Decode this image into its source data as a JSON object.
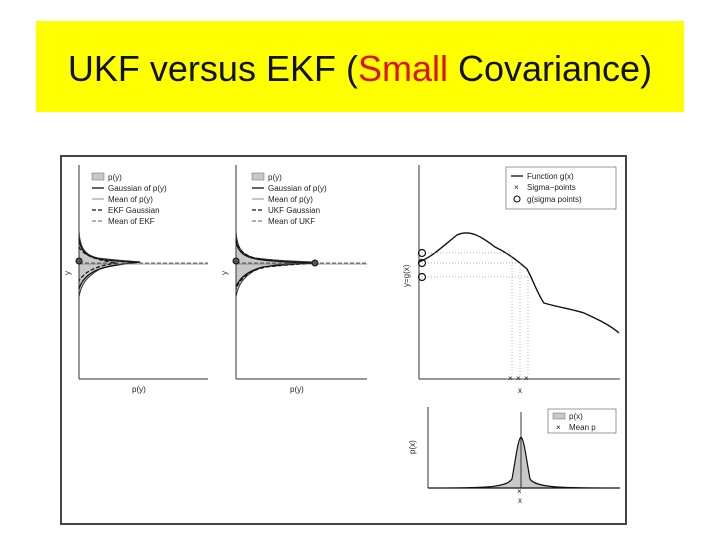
{
  "slide": {
    "title_prefix": "UKF versus EKF (",
    "title_highlight": "Small",
    "title_suffix": " Covariance)",
    "highlight_color": "#dd1111",
    "banner_color": "#ffff00"
  },
  "chart_data": [
    {
      "type": "area",
      "panel": "ekf",
      "xlabel": "p(y)",
      "ylabel": "y",
      "legend_position": "top-right",
      "legend": [
        "p(y)",
        "Gaussian of p(y)",
        "Mean of p(y)",
        "EKF Gaussian",
        "Mean of EKF"
      ]
    },
    {
      "type": "area",
      "panel": "ukf",
      "xlabel": "p(y)",
      "ylabel": "y",
      "legend_position": "top-right",
      "legend": [
        "p(y)",
        "Gaussian of p(y)",
        "Mean of p(y)",
        "UKF Gaussian",
        "Mean of UKF"
      ]
    },
    {
      "type": "line",
      "panel": "function",
      "xlabel": "x",
      "ylabel": "y=g(x)",
      "legend_position": "top-right",
      "legend": [
        "Function g(x)",
        "Sigma−points",
        "g(sigma points)"
      ]
    },
    {
      "type": "area",
      "panel": "prior",
      "xlabel": "x",
      "ylabel": "p(x)",
      "legend_position": "top-right",
      "legend": [
        "p(x)",
        "Mean p"
      ]
    }
  ]
}
